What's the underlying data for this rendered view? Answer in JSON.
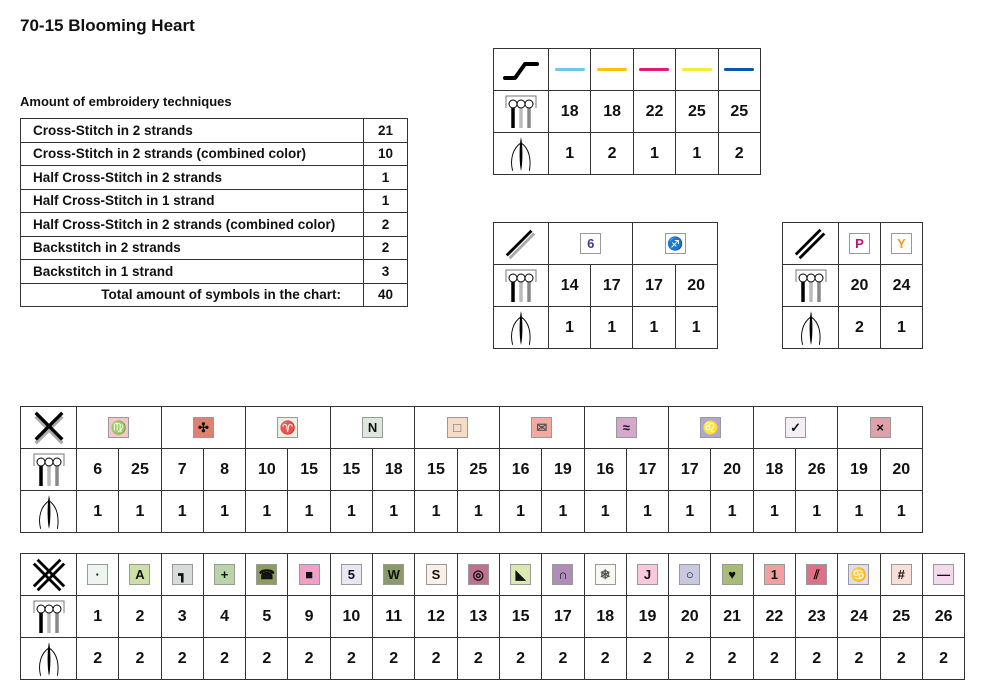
{
  "title": "70-15 Blooming Heart",
  "techniques": {
    "heading": "Amount of embroidery techniques",
    "rows": [
      {
        "label": "Cross-Stitch in 2 strands",
        "count": "21"
      },
      {
        "label": "Cross-Stitch in 2 strands (combined color)",
        "count": "10"
      },
      {
        "label": "Half Cross-Stitch in 2 strands",
        "count": "1"
      },
      {
        "label": "Half Cross-Stitch in 1 strand",
        "count": "1"
      },
      {
        "label": "Half Cross-Stitch in 2 strands (combined color)",
        "count": "2"
      },
      {
        "label": "Backstitch in 2 strands",
        "count": "2"
      },
      {
        "label": "Backstitch in 1 strand",
        "count": "3"
      }
    ],
    "total_label": "Total amount of symbols in the chart:",
    "total": "40"
  },
  "icons": {
    "backstitch": "backstitch-icon",
    "half_cross_combined": "half-cross-gray-icon",
    "half_cross": "half-cross-double-icon",
    "cross_combined": "cross-stitch-gray-icon",
    "cross": "cross-stitch-icon",
    "thread": "thread-number-icon",
    "needle": "strands-needle-icon"
  },
  "backstitch": {
    "lines": [
      {
        "color": "#6ec6ee",
        "thread": "18",
        "strands": "1"
      },
      {
        "color": "#f9c300",
        "thread": "18",
        "strands": "2"
      },
      {
        "color": "#e0197d",
        "thread": "22",
        "strands": "1"
      },
      {
        "color": "#f5e93a",
        "thread": "25",
        "strands": "1"
      },
      {
        "color": "#0a56a8",
        "thread": "25",
        "strands": "2"
      }
    ]
  },
  "half_cross_combined": {
    "symbols": [
      {
        "glyph": "6",
        "bg": "#ffffff",
        "fg": "#3a3a9a",
        "threads": [
          "14",
          "17"
        ],
        "strands": [
          "1",
          "1"
        ]
      },
      {
        "glyph": "♐",
        "bg": "#ffffff",
        "fg": "#8cc63f",
        "threads": [
          "17",
          "20"
        ],
        "strands": [
          "1",
          "1"
        ]
      }
    ]
  },
  "half_cross": {
    "symbols": [
      {
        "glyph": "P",
        "bg": "#ffffff",
        "fg": "#c0127f",
        "thread": "20",
        "strands": "2"
      },
      {
        "glyph": "Y",
        "bg": "#ffffff",
        "fg": "#f39a1e",
        "thread": "24",
        "strands": "1"
      }
    ]
  },
  "cross_combined": {
    "symbols": [
      {
        "glyph": "♍",
        "bg": "#f6c6cc",
        "fg": "#111",
        "threads": [
          "6",
          "25"
        ],
        "strands": [
          "1",
          "1"
        ]
      },
      {
        "glyph": "✣",
        "bg": "#e0806e",
        "fg": "#111",
        "threads": [
          "7",
          "8"
        ],
        "strands": [
          "1",
          "1"
        ]
      },
      {
        "glyph": "♈",
        "bg": "#eef0e4",
        "fg": "#111",
        "threads": [
          "10",
          "15"
        ],
        "strands": [
          "1",
          "1"
        ]
      },
      {
        "glyph": "N",
        "bg": "#dde8dc",
        "fg": "#111",
        "threads": [
          "15",
          "18"
        ],
        "strands": [
          "1",
          "1"
        ]
      },
      {
        "glyph": "□",
        "bg": "#f5dcc6",
        "fg": "#666",
        "threads": [
          "15",
          "25"
        ],
        "strands": [
          "1",
          "1"
        ]
      },
      {
        "glyph": "✉",
        "bg": "#f4aaa0",
        "fg": "#555",
        "threads": [
          "16",
          "19"
        ],
        "strands": [
          "1",
          "1"
        ]
      },
      {
        "glyph": "≈",
        "bg": "#d6a6cc",
        "fg": "#111",
        "threads": [
          "16",
          "17"
        ],
        "strands": [
          "1",
          "1"
        ]
      },
      {
        "glyph": "♌",
        "bg": "#b0a8d4",
        "fg": "#111",
        "threads": [
          "17",
          "20"
        ],
        "strands": [
          "1",
          "1"
        ]
      },
      {
        "glyph": "✓",
        "bg": "#f6eef4",
        "fg": "#111",
        "threads": [
          "18",
          "26"
        ],
        "strands": [
          "1",
          "1"
        ]
      },
      {
        "glyph": "×",
        "bg": "#e0a0aa",
        "fg": "#111",
        "threads": [
          "19",
          "20"
        ],
        "strands": [
          "1",
          "1"
        ]
      }
    ]
  },
  "cross": {
    "symbols": [
      {
        "glyph": "·",
        "bg": "#eef4ee",
        "fg": "#111",
        "thread": "1",
        "strands": "2"
      },
      {
        "glyph": "A",
        "bg": "#cde0a8",
        "fg": "#111",
        "thread": "2",
        "strands": "2"
      },
      {
        "glyph": "┓",
        "bg": "#d8dcd8",
        "fg": "#111",
        "thread": "3",
        "strands": "2"
      },
      {
        "glyph": "+",
        "bg": "#b8d4a8",
        "fg": "#111",
        "thread": "4",
        "strands": "2"
      },
      {
        "glyph": "☎",
        "bg": "#8a9e60",
        "fg": "#111",
        "thread": "5",
        "strands": "2"
      },
      {
        "glyph": "■",
        "bg": "#f0a0c8",
        "fg": "#111",
        "thread": "9",
        "strands": "2"
      },
      {
        "glyph": "5",
        "bg": "#e8e8f4",
        "fg": "#111",
        "thread": "10",
        "strands": "2"
      },
      {
        "glyph": "W",
        "bg": "#8a9a6a",
        "fg": "#111",
        "thread": "11",
        "strands": "2"
      },
      {
        "glyph": "S",
        "bg": "#fbefe6",
        "fg": "#111",
        "thread": "12",
        "strands": "2"
      },
      {
        "glyph": "◎",
        "bg": "#c07090",
        "fg": "#111",
        "thread": "13",
        "strands": "2"
      },
      {
        "glyph": "◣",
        "bg": "#dce8b4",
        "fg": "#111",
        "thread": "15",
        "strands": "2"
      },
      {
        "glyph": "∩",
        "bg": "#b08cb8",
        "fg": "#111",
        "thread": "17",
        "strands": "2"
      },
      {
        "glyph": "❄",
        "bg": "#f8f8f0",
        "fg": "#555",
        "thread": "18",
        "strands": "2"
      },
      {
        "glyph": "J",
        "bg": "#f8c8dc",
        "fg": "#111",
        "thread": "19",
        "strands": "2"
      },
      {
        "glyph": "○",
        "bg": "#c8c8e0",
        "fg": "#111",
        "thread": "20",
        "strands": "2"
      },
      {
        "glyph": "♥",
        "bg": "#a8bc78",
        "fg": "#111",
        "thread": "21",
        "strands": "2"
      },
      {
        "glyph": "1",
        "bg": "#f0a0a0",
        "fg": "#111",
        "thread": "22",
        "strands": "2"
      },
      {
        "glyph": "⫽",
        "bg": "#e07088",
        "fg": "#111",
        "thread": "23",
        "strands": "2"
      },
      {
        "glyph": "♋",
        "bg": "#e4dcec",
        "fg": "#111",
        "thread": "24",
        "strands": "2"
      },
      {
        "glyph": "#",
        "bg": "#f8e0d8",
        "fg": "#111",
        "thread": "25",
        "strands": "2"
      },
      {
        "glyph": "—",
        "bg": "#f4d8ec",
        "fg": "#111",
        "thread": "26",
        "strands": "2"
      }
    ]
  }
}
